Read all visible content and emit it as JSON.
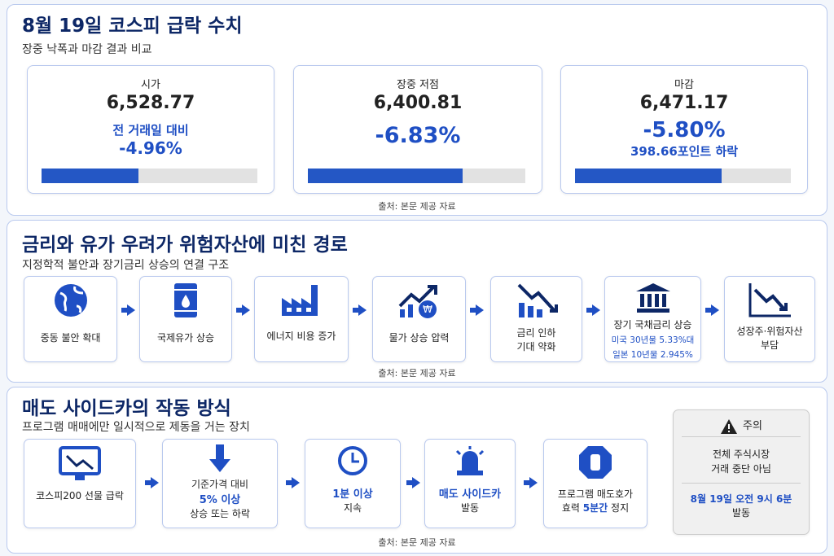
{
  "s1": {
    "title": "8월 19일 코스피 급락 수치",
    "subtitle": "장중 낙폭과 마감 결과 비교",
    "cards": [
      {
        "label": "시가",
        "value": "6,528.77",
        "note": "전 거래일 대비",
        "change": "-4.96%"
      },
      {
        "label": "장중 저점",
        "value": "6,400.81",
        "change": "-6.83%"
      },
      {
        "label": "마감",
        "value": "6,471.17",
        "change": "-5.80%",
        "note": "398.66포인트 하락"
      }
    ],
    "source": "출처: 본문 제공 자료"
  },
  "s2": {
    "title": "금리와 유가 우려가 위험자산에 미친 경로",
    "subtitle": "지정학적 불안과 장기금리 상승의 연결 구조",
    "steps": [
      {
        "lines": [
          "중동 불안 확대"
        ]
      },
      {
        "lines": [
          "국제유가 상승"
        ]
      },
      {
        "lines": [
          "에너지 비용 증가"
        ]
      },
      {
        "lines": [
          "물가 상승 압력"
        ]
      },
      {
        "lines": [
          "금리 인하",
          "기대 약화"
        ]
      },
      {
        "lines": [
          "장기 국채금리 상승"
        ],
        "details": [
          "미국 30년물 5.33%대",
          "일본 10년물 2.945%"
        ]
      },
      {
        "lines": [
          "성장주·위험자산",
          "부담"
        ]
      }
    ],
    "source": "출처: 본문 제공 자료"
  },
  "s3": {
    "title": "매도 사이드카의 작동 방식",
    "subtitle": "프로그램 매매에만 일시적으로 제동을 거는 장치",
    "steps": [
      [
        "코스피200 선물 급락"
      ],
      [
        "기준가격 대비",
        "5% 이상",
        "상승 또는 하락"
      ],
      [
        "1분 이상",
        "지속"
      ],
      [
        "매도 사이드카",
        "발동"
      ],
      [
        "프로그램 매도호가",
        "효력 ",
        "5분간",
        " 정지"
      ]
    ],
    "caution": {
      "title": "주의",
      "lines": [
        "전체 주식시장",
        "거래 중단 아님"
      ],
      "time": "8월 19일 오전 9시 6분",
      "result": "발동"
    },
    "source": "출처: 본문 제공 자료"
  }
}
